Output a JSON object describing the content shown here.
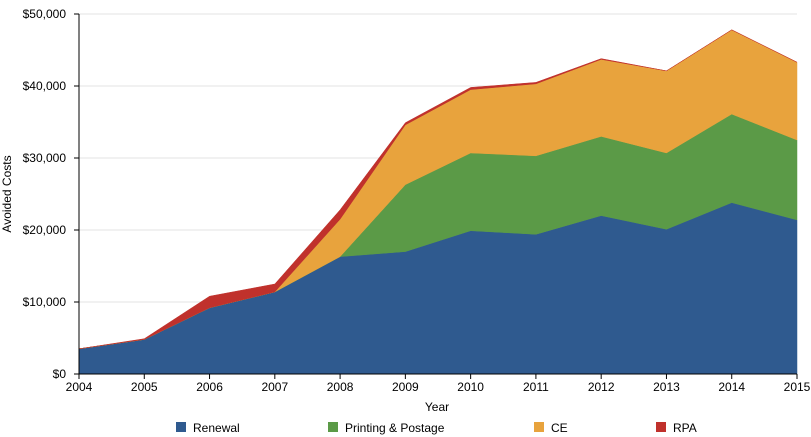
{
  "chart_data": {
    "type": "area",
    "stacked": true,
    "x": [
      "2004",
      "2005",
      "2006",
      "2007",
      "2008",
      "2009",
      "2010",
      "2011",
      "2012",
      "2013",
      "2014",
      "2015"
    ],
    "series": [
      {
        "name": "Renewal",
        "color": "#2f5a8f",
        "values": [
          3500,
          4800,
          9200,
          11400,
          16300,
          17000,
          19900,
          19400,
          22000,
          20100,
          23800,
          21400
        ]
      },
      {
        "name": "Printing & Postage",
        "color": "#5b9a47",
        "values": [
          0,
          0,
          0,
          0,
          0,
          9300,
          10800,
          10900,
          11000,
          10600,
          12300,
          11100
        ]
      },
      {
        "name": "CE",
        "color": "#e8a33d",
        "values": [
          0,
          0,
          0,
          0,
          5200,
          8300,
          8800,
          10000,
          10700,
          11400,
          11700,
          10800
        ]
      },
      {
        "name": "RPA",
        "color": "#c0312c",
        "values": [
          0,
          100,
          1600,
          1100,
          1300,
          300,
          300,
          200,
          100,
          0,
          0,
          0
        ]
      }
    ],
    "ylim": [
      0,
      50000
    ],
    "yticks": [
      0,
      10000,
      20000,
      30000,
      40000,
      50000
    ],
    "ytick_labels": [
      "$0",
      "$10,000",
      "$20,000",
      "$30,000",
      "$40,000",
      "$50,000"
    ],
    "xlabel": "Year",
    "ylabel": "Avoided Costs",
    "grid": true,
    "legend_position": "bottom"
  }
}
